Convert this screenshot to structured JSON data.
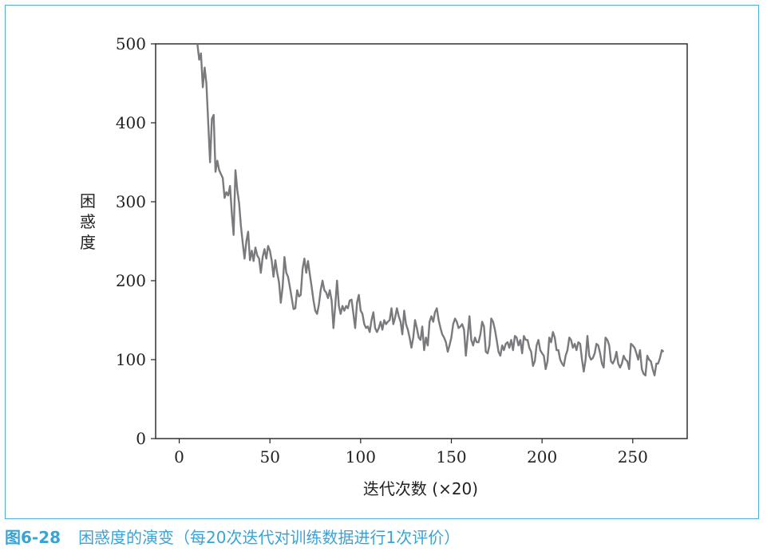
{
  "figure": {
    "caption_number": "图6-28",
    "caption_text": "困惑度的演变（每20次迭代对训练数据进行1次评价）"
  },
  "chart_data": {
    "type": "line",
    "title": "",
    "xlabel": "迭代次数 (×20)",
    "ylabel": "困惑度",
    "xlim": [
      -13,
      280
    ],
    "ylim": [
      0,
      500
    ],
    "x_ticks": [
      0,
      50,
      100,
      150,
      200,
      250
    ],
    "y_ticks": [
      0,
      100,
      200,
      300,
      400,
      500
    ],
    "grid": false,
    "line_color": "#7a7a7e",
    "series": [
      {
        "x_start": 10,
        "x_step": 1,
        "values": [
          500,
          480,
          488,
          445,
          470,
          450,
          400,
          350,
          405,
          410,
          338,
          352,
          340,
          335,
          330,
          305,
          312,
          308,
          320,
          285,
          258,
          340,
          315,
          298,
          270,
          248,
          228,
          250,
          262,
          226,
          238,
          225,
          242,
          232,
          228,
          210,
          230,
          240,
          228,
          244,
          238,
          225,
          205,
          226,
          210,
          198,
          172,
          192,
          230,
          210,
          205,
          192,
          178,
          164,
          165,
          188,
          180,
          182,
          215,
          228,
          210,
          225,
          208,
          192,
          175,
          162,
          158,
          170,
          188,
          200,
          188,
          185,
          178,
          188,
          175,
          140,
          168,
          200,
          168,
          158,
          168,
          162,
          168,
          165,
          175,
          176,
          158,
          140,
          172,
          182,
          162,
          158,
          145,
          140,
          142,
          135,
          150,
          160,
          140,
          135,
          140,
          148,
          138,
          150,
          145,
          148,
          150,
          165,
          145,
          153,
          165,
          155,
          148,
          132,
          162,
          145,
          138,
          128,
          115,
          128,
          150,
          140,
          128,
          125,
          142,
          112,
          128,
          118,
          148,
          155,
          148,
          160,
          165,
          150,
          140,
          132,
          128,
          122,
          110,
          118,
          128,
          145,
          152,
          148,
          140,
          142,
          145,
          138,
          105,
          130,
          155,
          125,
          118,
          128,
          122,
          122,
          132,
          148,
          142,
          110,
          108,
          118,
          152,
          148,
          138,
          125,
          110,
          105,
          118,
          112,
          120,
          122,
          115,
          125,
          112,
          130,
          128,
          118,
          125,
          108,
          130,
          125,
          125,
          115,
          110,
          92,
          98,
          118,
          125,
          112,
          108,
          105,
          88,
          98,
          128,
          122,
          135,
          128,
          112,
          112,
          100,
          95,
          92,
          105,
          112,
          128,
          125,
          115,
          120,
          112,
          122,
          120,
          100,
          85,
          100,
          130,
          105,
          100,
          102,
          108,
          120,
          118,
          108,
          95,
          90,
          128,
          125,
          118,
          98,
          95,
          100,
          110,
          95,
          90,
          95,
          105,
          100,
          98,
          88,
          120,
          118,
          115,
          108,
          100,
          112,
          88,
          82,
          80,
          105,
          100,
          98,
          88,
          80,
          95,
          95,
          102,
          112,
          110
        ]
      }
    ]
  }
}
